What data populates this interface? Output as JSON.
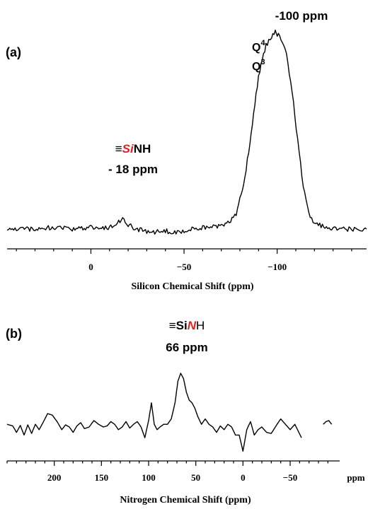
{
  "chart_data": [
    {
      "type": "line",
      "panel_label": "(a)",
      "xlabel": "Silicon Chemical Shift (ppm)",
      "xlim": [
        45,
        -148
      ],
      "ticks": [
        0,
        -50,
        -100
      ],
      "tick_labels": [
        "0",
        "−50",
        "−100"
      ],
      "annotations": {
        "peak_value": "-100 ppm",
        "q4": "Q",
        "q4_sup": "4",
        "q3": "Q",
        "q3_sup": "3",
        "sinh_prefix": "≡",
        "sinh_highlight": "Si",
        "sinh_suffix": "NH",
        "sinh_value": "- 18 ppm"
      },
      "highlight_color": "#e02020",
      "series": [
        {
          "x": [
            45,
            30,
            20,
            10,
            0,
            -10,
            -17,
            -20,
            -25,
            -30,
            -35,
            -40,
            -45,
            -50,
            -55,
            -60,
            -65,
            -70,
            -75,
            -78,
            -82,
            -86,
            -90,
            -94,
            -97,
            -99,
            -100,
            -102,
            -105,
            -108,
            -111,
            -114,
            -117,
            -120,
            -125,
            -130,
            -140,
            -148
          ],
          "y": [
            0,
            0,
            0.01,
            0,
            0.01,
            0.005,
            0.05,
            0.02,
            0,
            -0.01,
            -0.015,
            -0.01,
            -0.015,
            -0.01,
            0,
            0.005,
            0.01,
            0.02,
            0.04,
            0.08,
            0.22,
            0.48,
            0.78,
            0.93,
            0.98,
            1.0,
            0.99,
            0.97,
            0.88,
            0.7,
            0.45,
            0.22,
            0.08,
            0.03,
            0.01,
            0,
            0,
            0
          ]
        }
      ]
    },
    {
      "type": "line",
      "panel_label": "(b)",
      "xlabel": "Nitrogen Chemical Shift (ppm)",
      "xlim": [
        250,
        -95
      ],
      "ticks": [
        200,
        150,
        100,
        50,
        0,
        -50
      ],
      "tick_labels": [
        "200",
        "150",
        "100",
        "50",
        "0",
        "−50"
      ],
      "unit_label": "ppm",
      "annotations": {
        "sinh_prefix": "≡Si",
        "sinh_highlight": "N",
        "sinh_suffix": "H",
        "sinh_value": "66 ppm"
      },
      "highlight_color": "#e02020",
      "series": [
        {
          "x": [
            250,
            244,
            240,
            236,
            232,
            228,
            224,
            220,
            216,
            212,
            207,
            202,
            197,
            192,
            188,
            184,
            180,
            176,
            172,
            168,
            163,
            158,
            153,
            148,
            144,
            140,
            136,
            132,
            128,
            124,
            120,
            116,
            112,
            108,
            104,
            100,
            97,
            94,
            91,
            88,
            84,
            80,
            76,
            72,
            69,
            66,
            63,
            60,
            57,
            54,
            51,
            48,
            44,
            40,
            36,
            32,
            28,
            24,
            20,
            16,
            12,
            8,
            4,
            0,
            -4,
            -8,
            -12,
            -16,
            -20,
            -25,
            -30,
            -35,
            -40,
            -45,
            -50,
            -55,
            -62
          ],
          "y": [
            0.05,
            0.02,
            -0.1,
            0.03,
            -0.15,
            0.04,
            -0.12,
            0.05,
            -0.05,
            0.08,
            0.25,
            0.22,
            0.1,
            -0.05,
            0.04,
            0.0,
            -0.1,
            0.02,
            0.08,
            -0.03,
            0.0,
            0.12,
            0.05,
            0.0,
            0.02,
            0.1,
            0.05,
            -0.05,
            0.0,
            0.1,
            -0.02,
            0.05,
            0.1,
            0.0,
            -0.2,
            0.12,
            0.45,
            0.05,
            -0.05,
            0.0,
            0.05,
            0.05,
            0.15,
            0.45,
            0.85,
            1.0,
            0.9,
            0.65,
            0.5,
            0.45,
            0.35,
            0.2,
            0.05,
            0.15,
            0.05,
            0.0,
            -0.1,
            0.02,
            -0.05,
            0.05,
            0.0,
            -0.15,
            -0.15,
            -0.45,
            -0.05,
            0.1,
            -0.15,
            -0.05,
            0.0,
            -0.1,
            -0.12,
            0.02,
            0.15,
            0.05,
            -0.05,
            0.05,
            -0.2
          ]
        },
        {
          "x": [
            -85,
            -88,
            -91,
            -94
          ],
          "y": [
            0.05,
            0.1,
            0.12,
            0.05
          ]
        }
      ]
    }
  ]
}
